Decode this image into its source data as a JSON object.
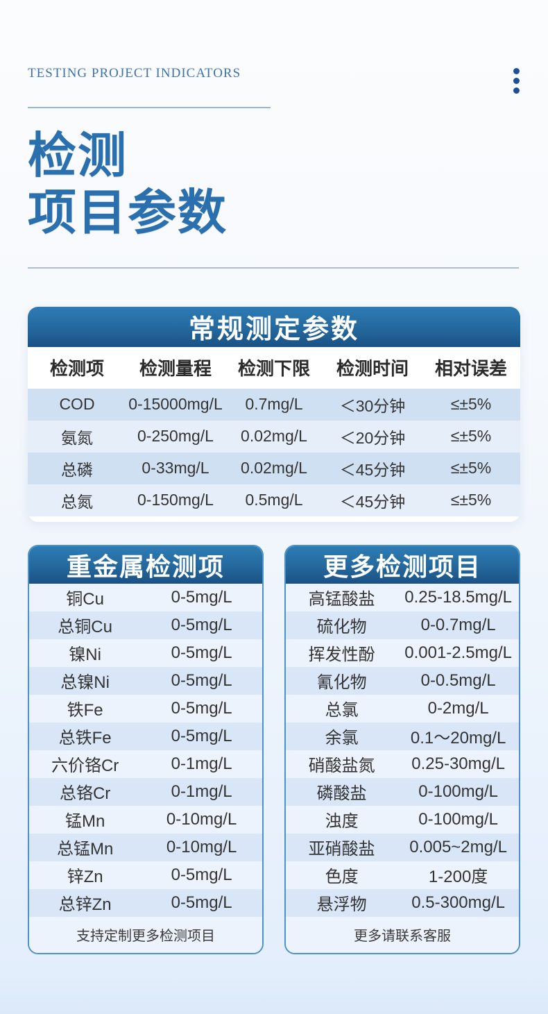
{
  "page": {
    "eyebrow": "TESTING PROJECT INDICATORS",
    "title_line1": "检测",
    "title_line2": "项目参数"
  },
  "icons": {
    "menu_dots": "kebab-menu-vertical-dots"
  },
  "colors": {
    "accent_blue": "#2a70ae",
    "header_gradient_top": "#2e7cb4",
    "header_gradient_bottom": "#1a5185",
    "main_row_odd": "#cfe0f3",
    "main_row_even": "#e6eefa",
    "side_row_light": "#ecf3fc",
    "side_row_dark": "#d8e6f7",
    "card_border": "#4c91c7",
    "eyebrow_text": "#3f72aa",
    "dots": "#1d4f99"
  },
  "main_table": {
    "title": "常规测定参数",
    "columns": [
      "检测项",
      "检测量程",
      "检测下限",
      "检测时间",
      "相对误差"
    ],
    "rows": [
      [
        "COD",
        "0-15000mg/L",
        "0.7mg/L",
        "＜30分钟",
        "≤±5%"
      ],
      [
        "氨氮",
        "0-250mg/L",
        "0.02mg/L",
        "＜20分钟",
        "≤±5%"
      ],
      [
        "总磷",
        "0-33mg/L",
        "0.02mg/L",
        "＜45分钟",
        "≤±5%"
      ],
      [
        "总氮",
        "0-150mg/L",
        "0.5mg/L",
        "＜45分钟",
        "≤±5%"
      ]
    ]
  },
  "left_card": {
    "title": "重金属检测项",
    "rows": [
      {
        "label": "铜Cu",
        "value": "0-5mg/L"
      },
      {
        "label": "总铜Cu",
        "value": "0-5mg/L"
      },
      {
        "label": "镍Ni",
        "value": "0-5mg/L"
      },
      {
        "label": "总镍Ni",
        "value": "0-5mg/L"
      },
      {
        "label": "铁Fe",
        "value": "0-5mg/L"
      },
      {
        "label": "总铁Fe",
        "value": "0-5mg/L"
      },
      {
        "label": "六价铬Cr",
        "value": "0-1mg/L"
      },
      {
        "label": "总铬Cr",
        "value": "0-1mg/L"
      },
      {
        "label": "锰Mn",
        "value": "0-10mg/L"
      },
      {
        "label": "总锰Mn",
        "value": "0-10mg/L"
      },
      {
        "label": "锌Zn",
        "value": "0-5mg/L"
      },
      {
        "label": "总锌Zn",
        "value": "0-5mg/L"
      }
    ],
    "footer": "支持定制更多检测项目"
  },
  "right_card": {
    "title": "更多检测项目",
    "rows": [
      {
        "label": "高锰酸盐",
        "value": "0.25-18.5mg/L"
      },
      {
        "label": "硫化物",
        "value": "0-0.7mg/L"
      },
      {
        "label": "挥发性酚",
        "value": "0.001-2.5mg/L"
      },
      {
        "label": "氰化物",
        "value": "0-0.5mg/L"
      },
      {
        "label": "总氯",
        "value": "0-2mg/L"
      },
      {
        "label": "余氯",
        "value": "0.1～20mg/L"
      },
      {
        "label": "硝酸盐氮",
        "value": "0.25-30mg/L"
      },
      {
        "label": "磷酸盐",
        "value": "0-100mg/L"
      },
      {
        "label": "浊度",
        "value": "0-100mg/L"
      },
      {
        "label": "亚硝酸盐",
        "value": "0.005~2mg/L"
      },
      {
        "label": "色度",
        "value": "1-200度"
      },
      {
        "label": "悬浮物",
        "value": "0.5-300mg/L"
      }
    ],
    "footer": "更多请联系客服"
  }
}
